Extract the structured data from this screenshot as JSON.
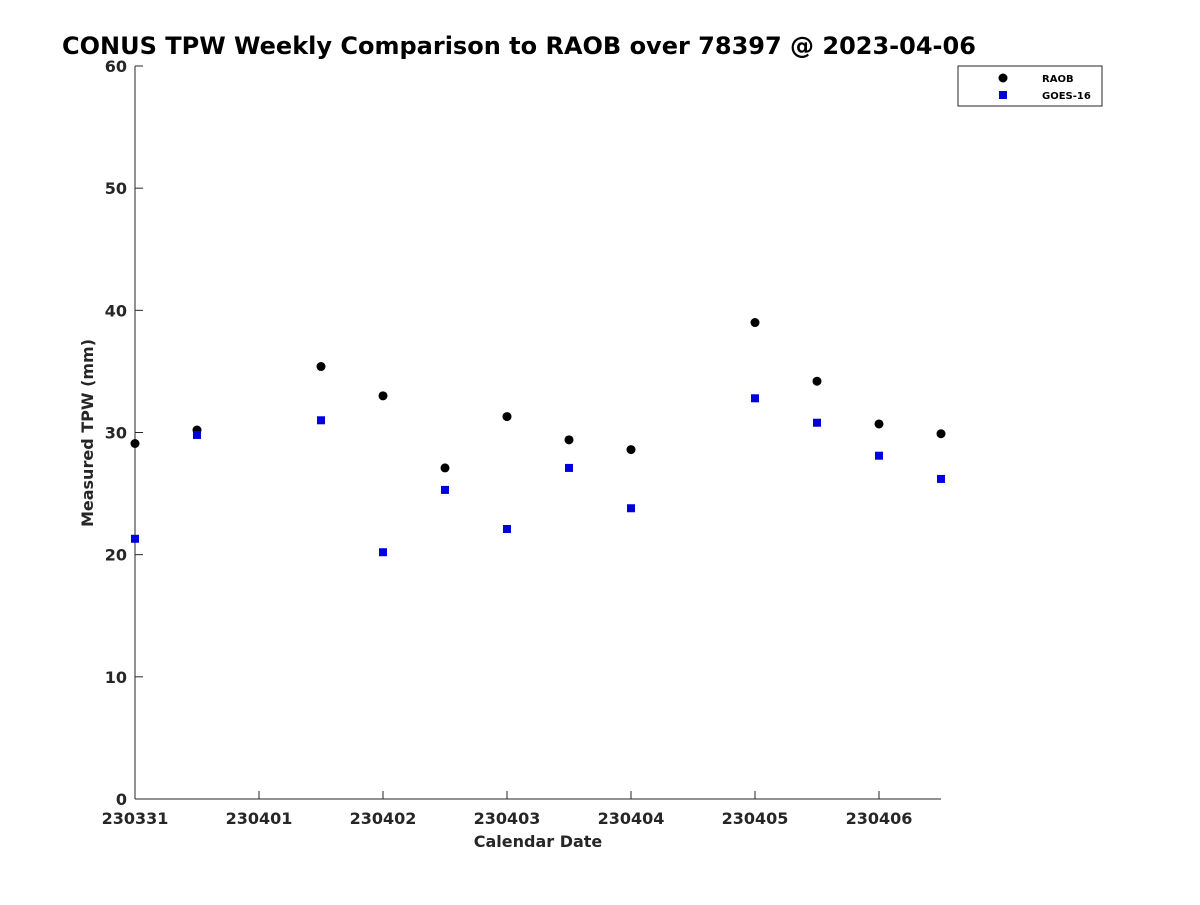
{
  "chart_data": {
    "type": "scatter",
    "title": "CONUS TPW Weekly Comparison to RAOB over 78397 @ 2023-04-06",
    "xlabel": "Calendar Date",
    "ylabel": "Measured TPW (mm)",
    "x_tick_labels": [
      "230331",
      "230401",
      "230402",
      "230403",
      "230404",
      "230405",
      "230406"
    ],
    "xlim": [
      "2023-03-31 00:00",
      "2023-04-06 12:00"
    ],
    "ylim": [
      0,
      60
    ],
    "y_ticks": [
      0,
      10,
      20,
      30,
      40,
      50,
      60
    ],
    "grid": false,
    "legend_position": "top-right",
    "series": [
      {
        "name": "RAOB",
        "marker": "circle",
        "color": "#000000",
        "x": [
          "2023-03-31 00:00",
          "2023-03-31 12:00",
          "2023-04-01 12:00",
          "2023-04-02 00:00",
          "2023-04-02 12:00",
          "2023-04-03 00:00",
          "2023-04-03 12:00",
          "2023-04-04 00:00",
          "2023-04-05 00:00",
          "2023-04-05 12:00",
          "2023-04-06 00:00",
          "2023-04-06 12:00"
        ],
        "values": [
          29.1,
          30.2,
          35.4,
          33.0,
          27.1,
          31.3,
          29.4,
          28.6,
          39.0,
          34.2,
          30.7,
          29.9
        ]
      },
      {
        "name": "GOES-16",
        "marker": "square",
        "color": "#0000dd",
        "x": [
          "2023-03-31 00:00",
          "2023-03-31 12:00",
          "2023-04-01 12:00",
          "2023-04-02 00:00",
          "2023-04-02 12:00",
          "2023-04-03 00:00",
          "2023-04-03 12:00",
          "2023-04-04 00:00",
          "2023-04-05 00:00",
          "2023-04-05 12:00",
          "2023-04-06 00:00",
          "2023-04-06 12:00"
        ],
        "values": [
          21.3,
          29.8,
          31.0,
          20.2,
          25.3,
          22.1,
          27.1,
          23.8,
          32.8,
          30.8,
          28.1,
          26.2
        ]
      }
    ]
  }
}
